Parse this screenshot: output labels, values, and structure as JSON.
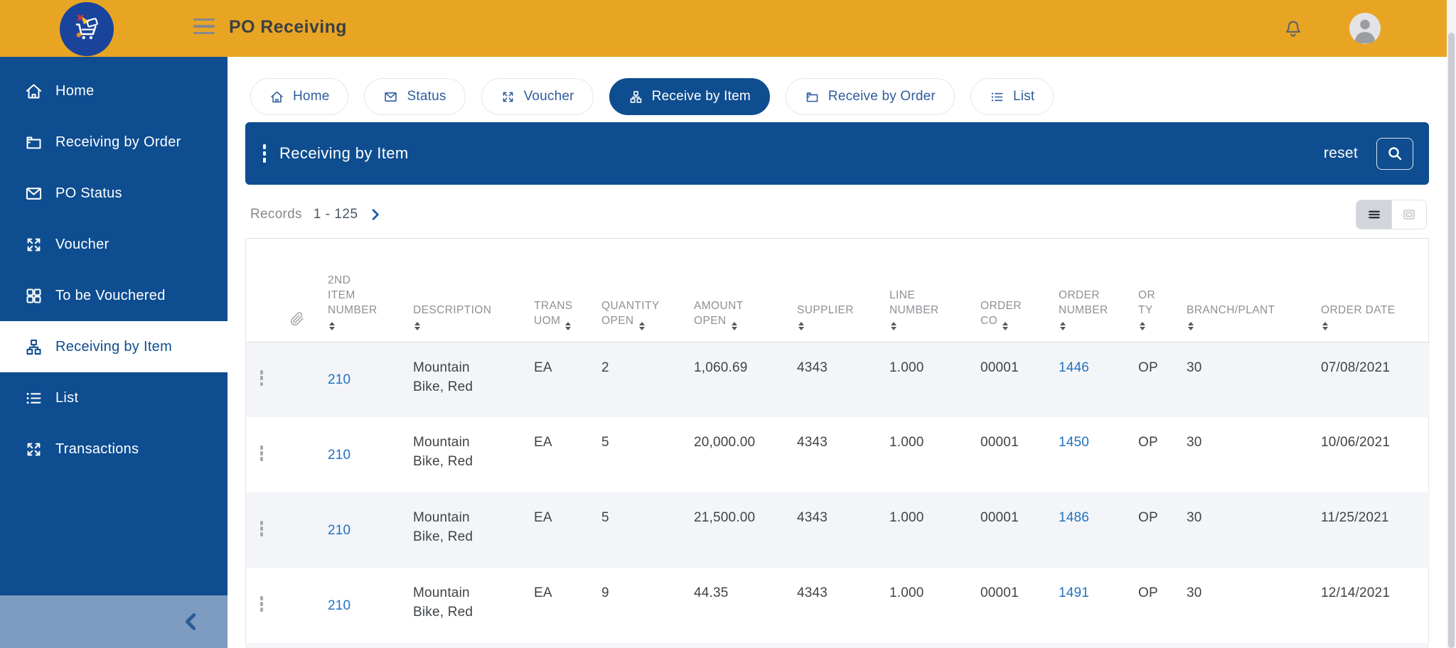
{
  "topbar": {
    "title": "PO Receiving"
  },
  "colors": {
    "topbar_amber": "#E8A524",
    "primary_blue": "#0E4D90",
    "link_blue": "#2273BE",
    "sidebar_collapse_band": "#7E9CC1",
    "alt_row_bg": "#F3F5F9",
    "header_text_gray": "#8D9095"
  },
  "icons": [
    "cart-logo-icon",
    "hamburger-icon",
    "bell-icon",
    "user-avatar-icon",
    "home-icon",
    "wallet-icon",
    "envelope-icon",
    "expand-icon",
    "grid-icon",
    "sitemap-icon",
    "list-icon",
    "kebab-icon",
    "search-icon",
    "chevron-right-icon",
    "chevron-left-icon",
    "paperclip-icon",
    "sort-icon",
    "list-view-icon",
    "card-view-icon"
  ],
  "sidebar": {
    "items": [
      {
        "label": "Home",
        "icon": "home",
        "active": false
      },
      {
        "label": "Receiving by Order",
        "icon": "wallet",
        "active": false
      },
      {
        "label": "PO Status",
        "icon": "envelope",
        "active": false
      },
      {
        "label": "Voucher",
        "icon": "expand",
        "active": false
      },
      {
        "label": "To be Vouchered",
        "icon": "grid",
        "active": false
      },
      {
        "label": "Receiving by Item",
        "icon": "sitemap",
        "active": true
      },
      {
        "label": "List",
        "icon": "list",
        "active": false
      },
      {
        "label": "Transactions",
        "icon": "expand",
        "active": false
      }
    ]
  },
  "tabs": [
    {
      "label": "Home",
      "icon": "home",
      "active": false
    },
    {
      "label": "Status",
      "icon": "envelope",
      "active": false
    },
    {
      "label": "Voucher",
      "icon": "expand",
      "active": false
    },
    {
      "label": "Receive by Item",
      "icon": "sitemap",
      "active": true
    },
    {
      "label": "Receive by Order",
      "icon": "wallet",
      "active": false
    },
    {
      "label": "List",
      "icon": "list",
      "active": false
    }
  ],
  "panel": {
    "title": "Receiving by Item",
    "reset_label": "reset"
  },
  "records": {
    "label": "Records",
    "range": "1 - 125"
  },
  "table": {
    "columns": [
      {
        "key": "attach",
        "icon": "paperclip",
        "lines": [],
        "sort": null
      },
      {
        "key": "item",
        "lines": [
          "2ND",
          "ITEM",
          "NUMBER"
        ],
        "sort": "below"
      },
      {
        "key": "description",
        "lines": [
          "DESCRIPTION"
        ],
        "sort": "below"
      },
      {
        "key": "uom",
        "lines": [
          "TRANS",
          "UOM"
        ],
        "sort": "inline"
      },
      {
        "key": "qty",
        "lines": [
          "QUANTITY",
          "OPEN"
        ],
        "sort": "inline"
      },
      {
        "key": "amount",
        "lines": [
          "AMOUNT",
          "OPEN"
        ],
        "sort": "inline"
      },
      {
        "key": "supplier",
        "lines": [
          "SUPPLIER"
        ],
        "sort": "below"
      },
      {
        "key": "line",
        "lines": [
          "LINE",
          "NUMBER"
        ],
        "sort": "below"
      },
      {
        "key": "co",
        "lines": [
          "ORDER",
          "CO"
        ],
        "sort": "inline"
      },
      {
        "key": "order",
        "lines": [
          "ORDER",
          "NUMBER"
        ],
        "sort": "below"
      },
      {
        "key": "orty",
        "lines": [
          "OR",
          "TY"
        ],
        "sort": "below"
      },
      {
        "key": "branch",
        "lines": [
          "BRANCH/PLANT"
        ],
        "sort": "below"
      },
      {
        "key": "date",
        "lines": [
          "ORDER DATE"
        ],
        "sort": "below"
      }
    ],
    "rows": [
      {
        "item": "210",
        "description": "Mountain Bike, Red",
        "uom": "EA",
        "qty": "2",
        "amount": "1,060.69",
        "supplier": "4343",
        "line": "1.000",
        "co": "00001",
        "order": "1446",
        "orty": "OP",
        "branch": "30",
        "date": "07/08/2021"
      },
      {
        "item": "210",
        "description": "Mountain Bike, Red",
        "uom": "EA",
        "qty": "5",
        "amount": "20,000.00",
        "supplier": "4343",
        "line": "1.000",
        "co": "00001",
        "order": "1450",
        "orty": "OP",
        "branch": "30",
        "date": "10/06/2021"
      },
      {
        "item": "210",
        "description": "Mountain Bike, Red",
        "uom": "EA",
        "qty": "5",
        "amount": "21,500.00",
        "supplier": "4343",
        "line": "1.000",
        "co": "00001",
        "order": "1486",
        "orty": "OP",
        "branch": "30",
        "date": "11/25/2021"
      },
      {
        "item": "210",
        "description": "Mountain Bike, Red",
        "uom": "EA",
        "qty": "9",
        "amount": "44.35",
        "supplier": "4343",
        "line": "1.000",
        "co": "00001",
        "order": "1491",
        "orty": "OP",
        "branch": "30",
        "date": "12/14/2021"
      }
    ]
  }
}
